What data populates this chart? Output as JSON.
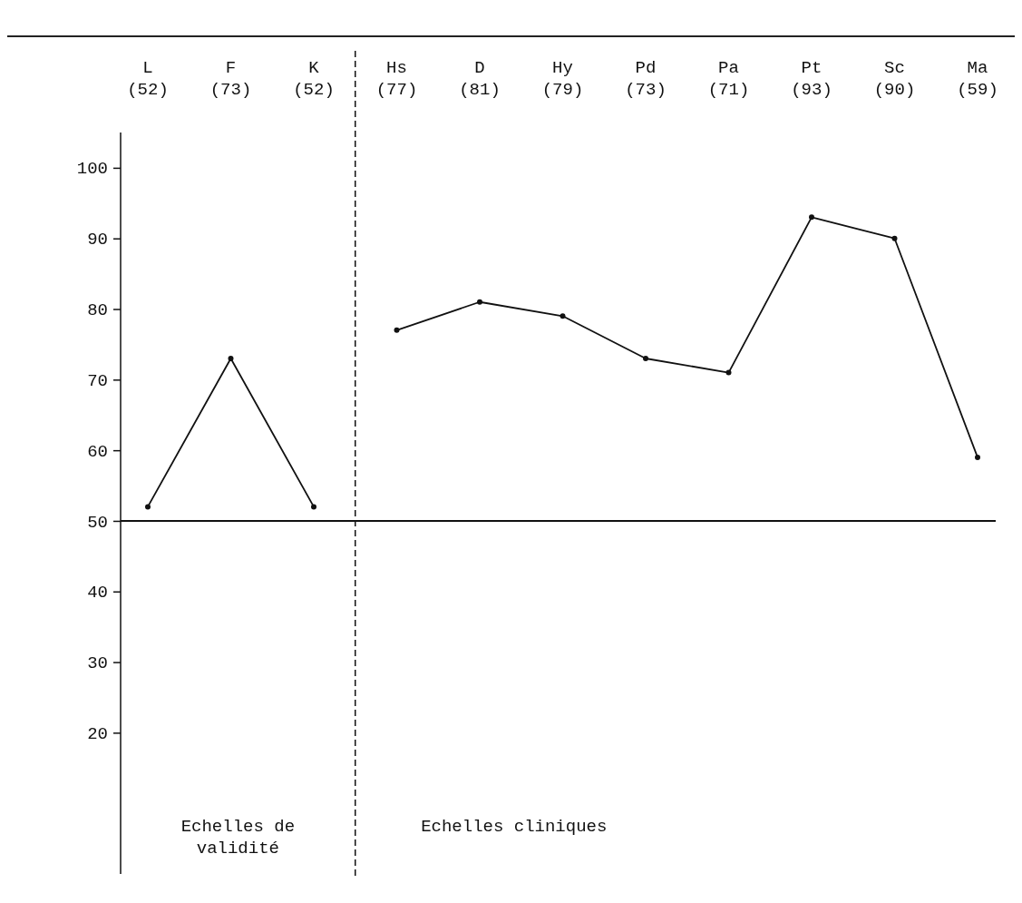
{
  "chart_data": {
    "type": "line",
    "categories": [
      "L",
      "F",
      "K",
      "Hs",
      "D",
      "Hy",
      "Pd",
      "Pa",
      "Pt",
      "Sc",
      "Ma"
    ],
    "series": [
      {
        "color": "#111111",
        "values": [
          52,
          73,
          52,
          null,
          null,
          null,
          null,
          null,
          null,
          null,
          null
        ]
      },
      {
        "color": "#111111",
        "values": [
          null,
          null,
          null,
          77,
          81,
          79,
          73,
          71,
          93,
          90,
          59
        ]
      }
    ],
    "value_labels": [
      "(52)",
      "(73)",
      "(52)",
      "(77)",
      "(81)",
      "(79)",
      "(73)",
      "(71)",
      "(93)",
      "(90)",
      "(59)"
    ],
    "ylim": [
      0,
      105
    ],
    "yticks": [
      20,
      30,
      40,
      50,
      60,
      70,
      80,
      90,
      100
    ],
    "ref_lines": [
      {
        "axis": "y",
        "value": 50,
        "label": null
      }
    ],
    "annotations": [
      "Echelles de validité",
      "Echelles cliniques"
    ],
    "marker": "circle",
    "line_style": "solid",
    "grid": false
  }
}
